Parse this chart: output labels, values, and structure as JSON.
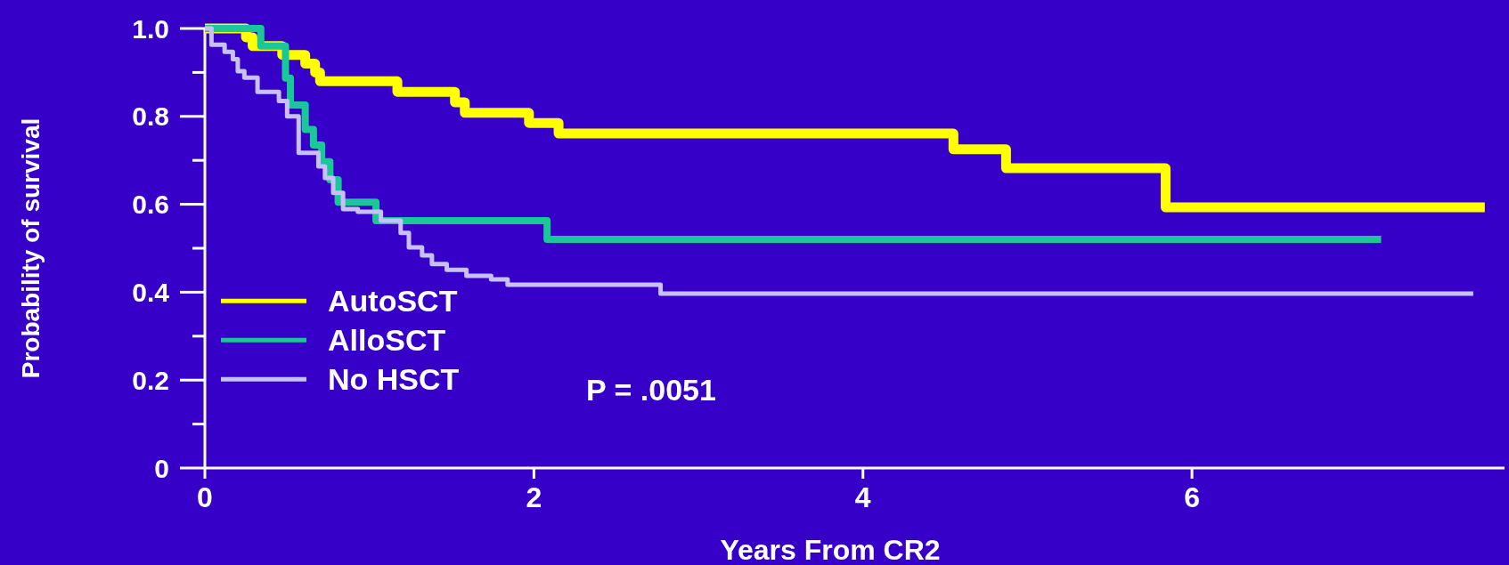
{
  "chart_data": {
    "type": "step",
    "xlabel": "Years From CR2",
    "ylabel": "Probability of survival",
    "xlim": [
      0,
      7.9
    ],
    "xticks": [
      0,
      2,
      4,
      6
    ],
    "ylim": [
      0,
      1
    ],
    "yticks": [
      {
        "value": 0,
        "label": "0"
      },
      {
        "value": 0.1,
        "label": null
      },
      0.2,
      {
        "value": 0.3,
        "label": null
      },
      0.4,
      {
        "value": 0.5,
        "label": null
      },
      0.6,
      {
        "value": 0.7,
        "label": null
      },
      0.8,
      {
        "value": 0.9,
        "label": null
      },
      {
        "value": 1,
        "label": "1.0"
      }
    ],
    "grid": false,
    "legend": "bottom left",
    "line_style": "solid",
    "annotations": [
      "P = .0051"
    ],
    "series": [
      {
        "name": "AutoSCT",
        "color": "#ffff00",
        "x": [
          0,
          0.25,
          0.29,
          0.47,
          0.61,
          0.67,
          0.7,
          1.17,
          1.52,
          1.58,
          1.97,
          2.15,
          4.55,
          4.87,
          5.84,
          7.78
        ],
        "values": [
          1.0,
          0.98,
          0.96,
          0.94,
          0.92,
          0.9,
          0.88,
          0.856,
          0.832,
          0.808,
          0.785,
          0.761,
          0.725,
          0.682,
          0.593,
          0.593
        ]
      },
      {
        "name": "AlloSCT",
        "color": "#19c896",
        "x": [
          0,
          0.34,
          0.49,
          0.52,
          0.61,
          0.66,
          0.71,
          0.76,
          0.81,
          1.04,
          2.08,
          7.15
        ],
        "values": [
          1.0,
          0.96,
          0.887,
          0.826,
          0.77,
          0.735,
          0.697,
          0.656,
          0.605,
          0.563,
          0.52,
          0.52
        ]
      },
      {
        "name": "No HSCT",
        "color": "#c8c0f8",
        "x": [
          0,
          0.04,
          0.12,
          0.17,
          0.2,
          0.24,
          0.32,
          0.45,
          0.5,
          0.57,
          0.69,
          0.73,
          0.78,
          0.84,
          0.93,
          1.07,
          1.19,
          1.24,
          1.32,
          1.38,
          1.47,
          1.59,
          1.74,
          1.84,
          2.77,
          7.71
        ],
        "values": [
          1.0,
          0.963,
          0.947,
          0.93,
          0.903,
          0.888,
          0.856,
          0.835,
          0.8,
          0.717,
          0.686,
          0.66,
          0.626,
          0.589,
          0.583,
          0.563,
          0.535,
          0.502,
          0.484,
          0.464,
          0.451,
          0.437,
          0.429,
          0.417,
          0.397,
          0.397
        ]
      }
    ]
  }
}
